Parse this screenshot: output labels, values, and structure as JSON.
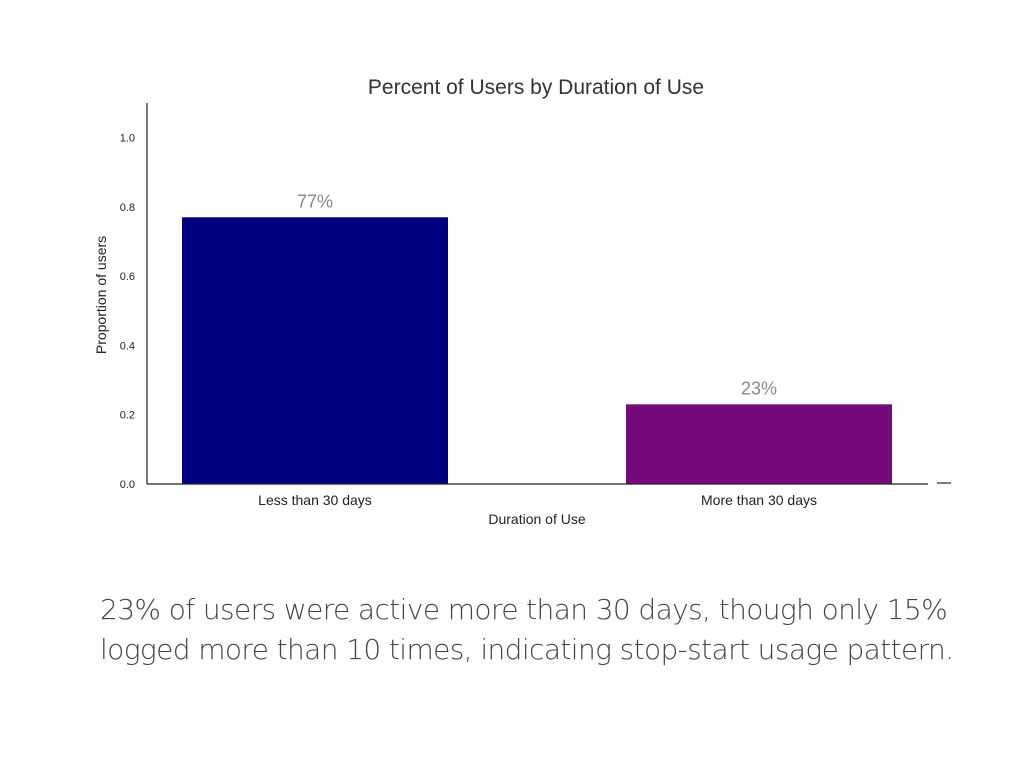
{
  "chart_data": {
    "type": "bar",
    "title": "Percent of Users by Duration of Use",
    "xlabel": "Duration of Use",
    "ylabel": "Proportion of users",
    "categories": [
      "Less than 30 days",
      "More than 30 days"
    ],
    "values": [
      0.77,
      0.23
    ],
    "data_labels": [
      "77%",
      "23%"
    ],
    "colors": [
      "#000080",
      "#770A7B"
    ],
    "ylim": [
      0,
      1.1
    ],
    "yticks": [
      0.0,
      0.2,
      0.4,
      0.6,
      0.8,
      1.0
    ],
    "ytick_labels": [
      "0.0",
      "0.2",
      "0.4",
      "0.6",
      "0.8",
      "1.0"
    ],
    "grid": false,
    "legend": "none"
  },
  "caption": {
    "line1": "23% of users were active more than 30 days, though only 15%",
    "line2": "logged more than 10 times, indicating stop-start usage pattern."
  }
}
